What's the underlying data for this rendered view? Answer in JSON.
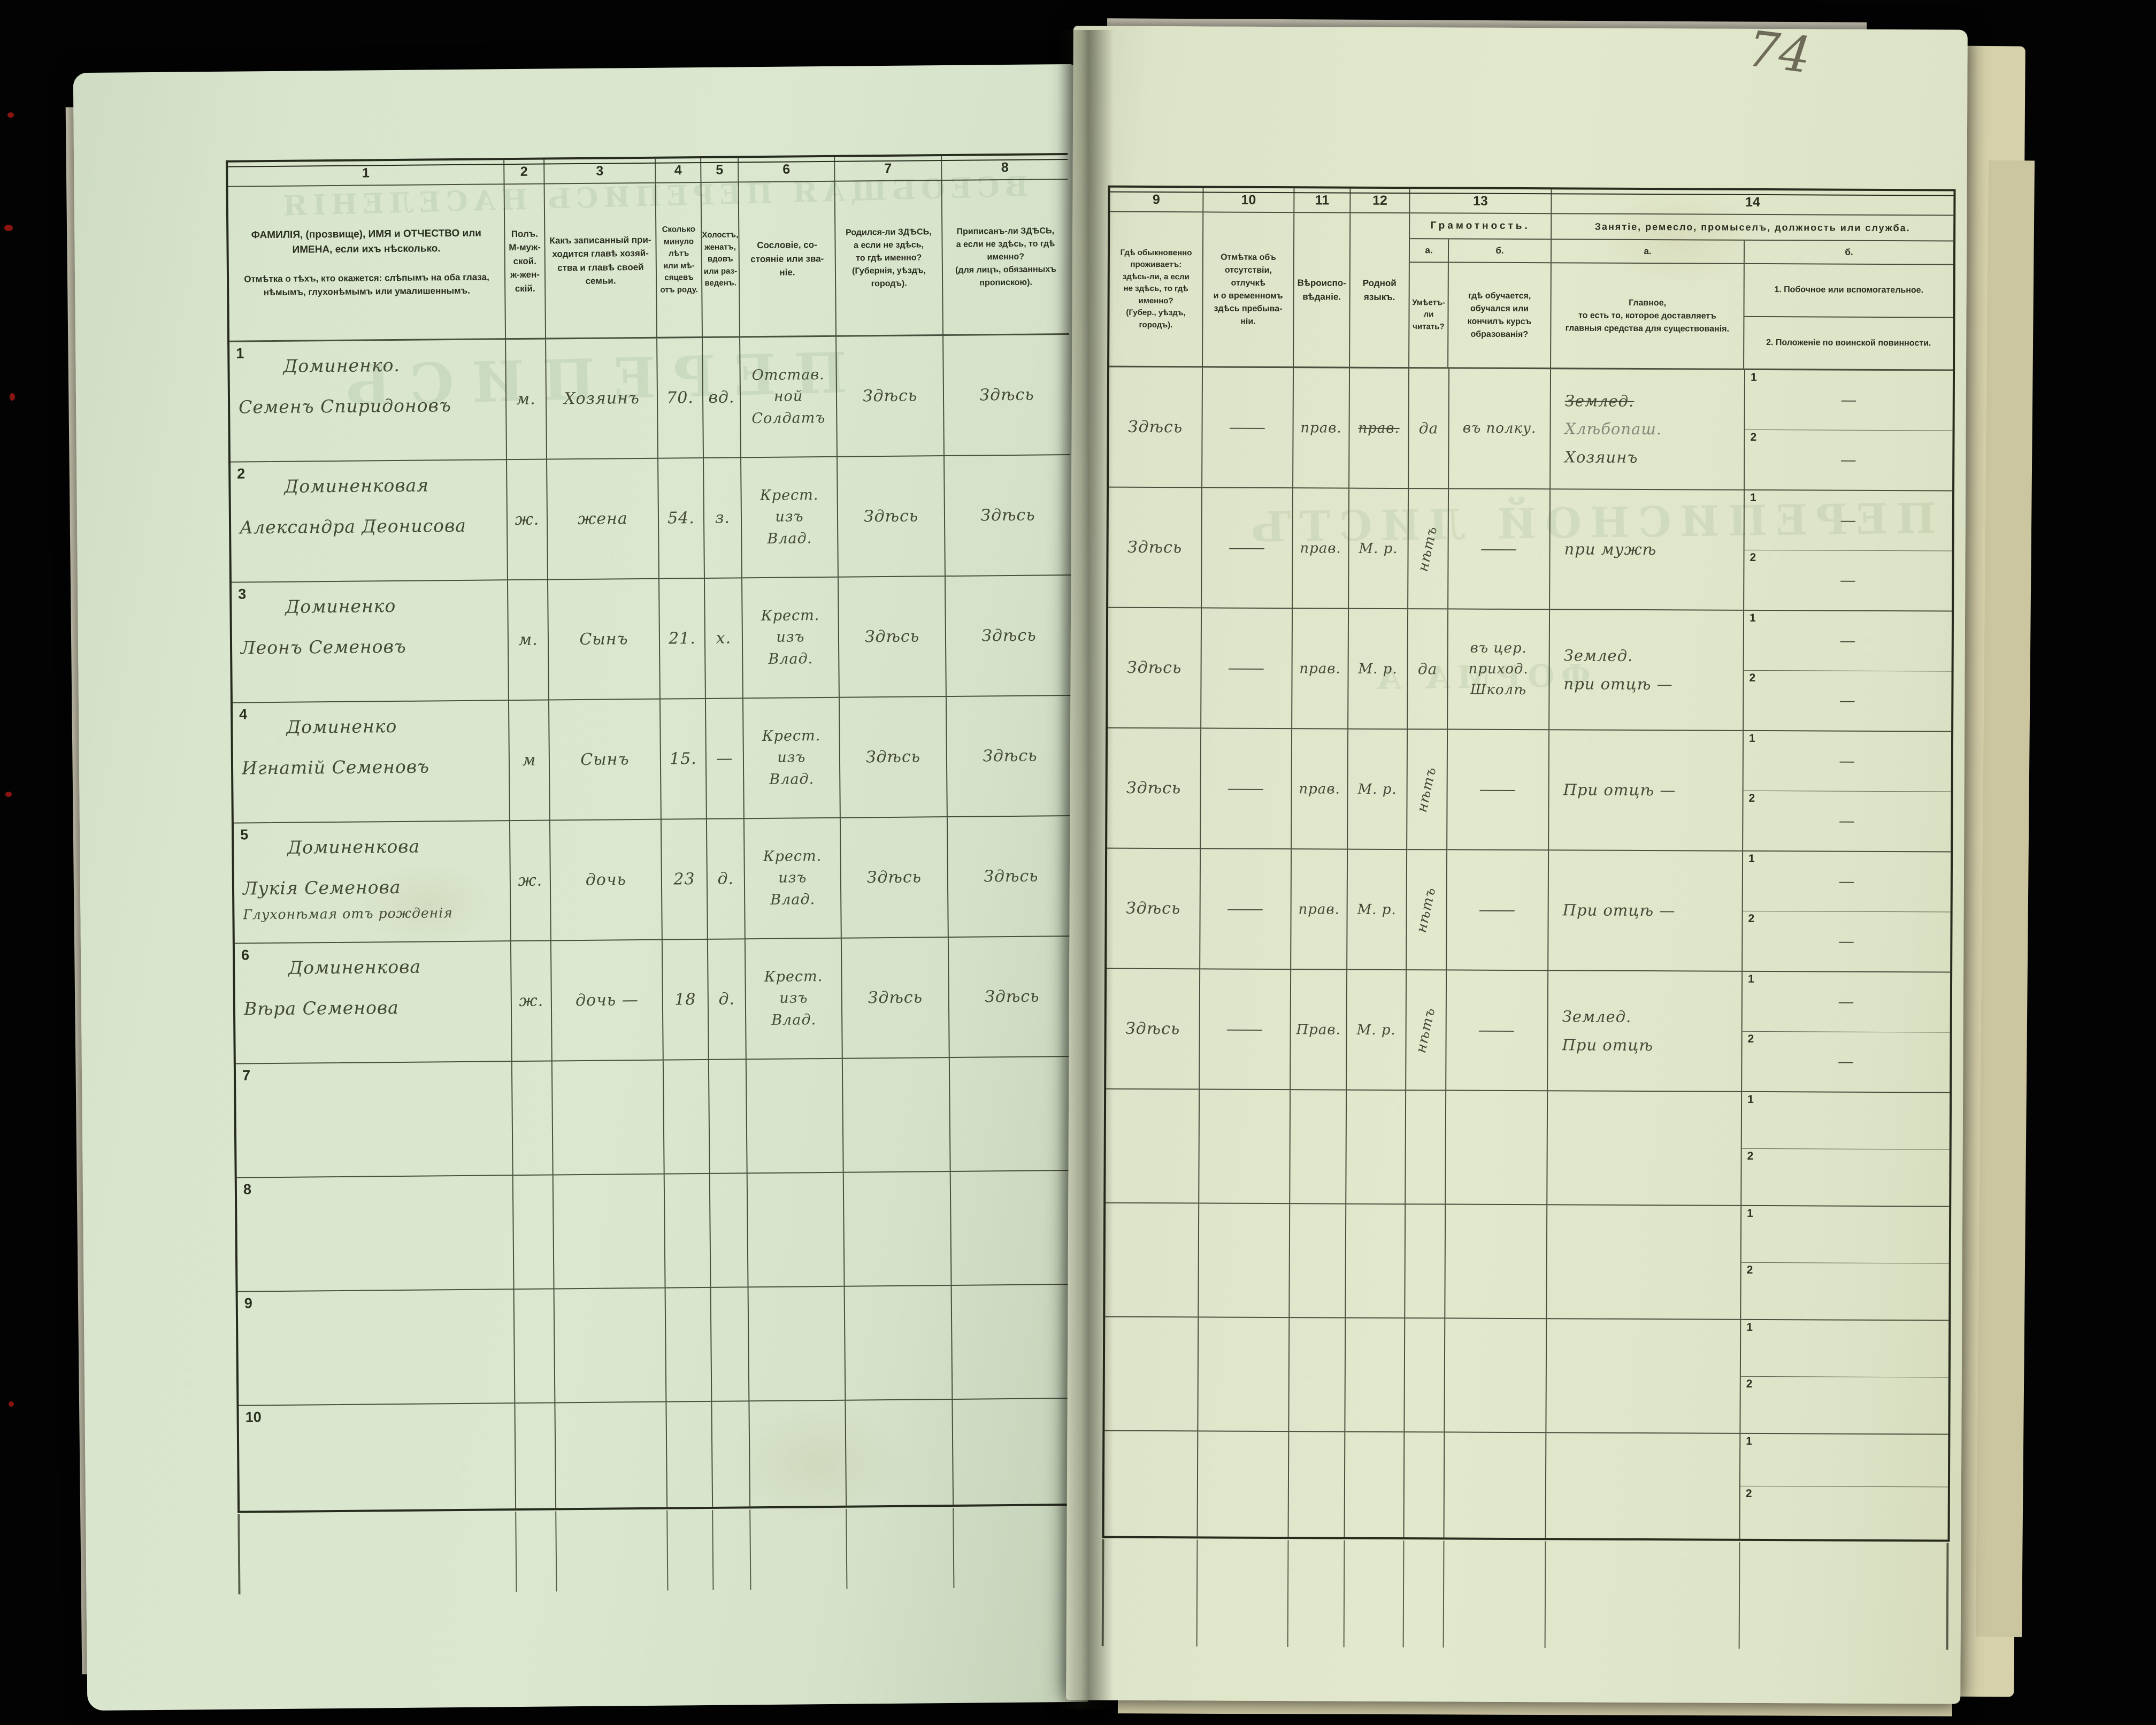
{
  "page_number": "74",
  "colors": {
    "background": "#030303",
    "paper_left": "#d9e5cd",
    "paper_right": "#e2e8cc",
    "print_ink": "#2a2e1f",
    "hand_ink": "#434936",
    "pencil": "#84887a",
    "table_line": "#2b2f21",
    "under_sheet": "#d8d2ac"
  },
  "header": {
    "nums": [
      "1",
      "2",
      "3",
      "4",
      "5",
      "6",
      "7",
      "8",
      "9",
      "10",
      "11",
      "12",
      "13",
      "14"
    ],
    "col1_top": "ФАМИЛІЯ, (прозвище), ИМЯ и ОТЧЕСТВО или ИМЕНА, если ихъ нѣсколько.",
    "col1_bottom": "Отмѣтка о тѣхъ, кто окажется: слѣпымъ на оба глаза, нѣмымъ, глухонѣмымъ или умалишеннымъ.",
    "col2": "Полъ.\nМ-муж-\nской.\nж-жен-\nскій.",
    "col3": "Какъ записанный при-\nходится главѣ хозяй-\nства и главѣ своей\nсемьи.",
    "col4": "Сколько\nминуло\nлѣтъ\nили мѣ-\nсяцевъ\nотъ роду.",
    "col5": "Холостъ,\nженатъ,\nвдовъ\nили раз-\nведенъ.",
    "col6": "Сословіе, со-\nстояніе или зва-\nніе.",
    "col7": "Родился-ли ЗДѢСЬ,\nа если не здѣсь,\nто гдѣ именно?\n(Губернія, уѣздъ, городъ).",
    "col8": "Приписанъ-ли ЗДѢСЬ,\nа если не здѣсь, то гдѣ\nименно?\n(для лицъ, обязанныхъ\nпропискою).",
    "col9": "Гдѣ обыкновенно\nпроживаетъ:\nздѣсь-ли, а если\nне здѣсь, то гдѣ\nименно?\n(Губер., уѣздъ, городъ).",
    "col10": "Отмѣтка объ\nотсутствіи, отлучкѣ\nи о временномъ\nздѣсь пребыва-\nніи.",
    "col11": "Вѣроиспо-\nвѣданіе.",
    "col12": "Родной\nязыкъ.",
    "col13_title": "Грамотность.",
    "col13a_label": "а.",
    "col13b_label": "б.",
    "col13a": "Умѣетъ-\nли\nчитать?",
    "col13b": "гдѣ обучается,\nобучался или\nкончилъ курсъ\nобразованія?",
    "col14_title": "Занятіе, ремесло, промыселъ, должность или служба.",
    "col14a_label": "а.",
    "col14b_label": "б.",
    "col14a": "Главное,\nто есть то, которое доставляетъ\nглавныя средства для существованія.",
    "col14b_1": "1. Побочное или вспомогательное.",
    "col14b_2": "2. Положеніе по воинской повинности."
  },
  "row_sub_labels": [
    "1",
    "2"
  ],
  "rows": [
    {
      "num": "1",
      "name": [
        "Доминенко.",
        "Семенъ Спиридоновъ"
      ],
      "sex": "м.",
      "relation": "Хозяинъ",
      "age": "70.",
      "marital": "вд.",
      "estate": "Отстав.\nной\nСолдатъ",
      "born": "Здѣсь",
      "registered": "Здѣсь",
      "resides": "Здѣсь",
      "absence": "—",
      "religion": "прав.",
      "language": "прав.",
      "language_struck": true,
      "reads": "да",
      "reads_vertical": false,
      "school": "въ полку.",
      "occupation": [
        {
          "t": "Землед.",
          "s": "struck"
        },
        {
          "t": "Хлѣбопаш.",
          "s": "pencil"
        },
        {
          "t": "Хозяинъ",
          "s": ""
        }
      ],
      "side1": "—",
      "side2": "—"
    },
    {
      "num": "2",
      "name": [
        "Доминенковая",
        "Александра Деонисова"
      ],
      "sex": "ж.",
      "relation": "жена",
      "age": "54.",
      "marital": "з.",
      "estate": "Крест.\nизъ\nВлад.",
      "born": "Здѣсь",
      "registered": "Здѣсь",
      "resides": "Здѣсь",
      "absence": "—",
      "religion": "прав.",
      "language": "М. р.",
      "language_struck": false,
      "reads": "нѣтъ",
      "reads_vertical": true,
      "school": "—",
      "occupation": [
        {
          "t": "при мужѣ",
          "s": ""
        }
      ],
      "side1": "—",
      "side2": "—"
    },
    {
      "num": "3",
      "name": [
        "Доминенко",
        "Леонъ Семеновъ"
      ],
      "sex": "м.",
      "relation": "Сынъ",
      "age": "21.",
      "marital": "х.",
      "estate": "Крест.\nизъ\nВлад.",
      "born": "Здѣсь",
      "registered": "Здѣсь",
      "resides": "Здѣсь",
      "absence": "—",
      "religion": "прав.",
      "language": "М. р.",
      "language_struck": false,
      "reads": "да",
      "reads_vertical": false,
      "school": "въ цер.\nприход.\nШколѣ",
      "occupation": [
        {
          "t": "Землед.",
          "s": ""
        },
        {
          "t": "при отцѣ —",
          "s": ""
        }
      ],
      "side1": "—",
      "side2": "—"
    },
    {
      "num": "4",
      "name": [
        "Доминенко",
        "Игнатій Семеновъ"
      ],
      "sex": "м",
      "relation": "Сынъ",
      "age": "15.",
      "marital": "—",
      "estate": "Крест.\nизъ\nВлад.",
      "born": "Здѣсь",
      "registered": "Здѣсь",
      "resides": "Здѣсь",
      "absence": "—",
      "religion": "прав.",
      "language": "М. р.",
      "language_struck": false,
      "reads": "нѣтъ",
      "reads_vertical": true,
      "school": "—",
      "occupation": [
        {
          "t": "При отцѣ —",
          "s": ""
        }
      ],
      "side1": "—",
      "side2": "—"
    },
    {
      "num": "5",
      "name": [
        "Доминенкова",
        "Лукія Семенова",
        "Глухонѣмая отъ рожденія"
      ],
      "sex": "ж.",
      "relation": "дочь",
      "age": "23",
      "marital": "д.",
      "estate": "Крест.\nизъ\nВлад.",
      "born": "Здѣсь",
      "registered": "Здѣсь",
      "resides": "Здѣсь",
      "absence": "—",
      "religion": "прав.",
      "language": "М. р.",
      "language_struck": false,
      "reads": "нѣтъ",
      "reads_vertical": true,
      "school": "—",
      "occupation": [
        {
          "t": "При отцѣ —",
          "s": ""
        }
      ],
      "side1": "—",
      "side2": "—"
    },
    {
      "num": "6",
      "name": [
        "Доминенкова",
        "Вѣра Семенова"
      ],
      "sex": "ж.",
      "relation": "дочь —",
      "age": "18",
      "marital": "д.",
      "estate": "Крест.\nизъ\nВлад.",
      "born": "Здѣсь",
      "registered": "Здѣсь",
      "resides": "Здѣсь",
      "absence": "—",
      "religion": "Прав.",
      "language": "М. р.",
      "language_struck": false,
      "reads": "нѣтъ",
      "reads_vertical": true,
      "school": "—",
      "occupation": [
        {
          "t": "Землед.",
          "s": ""
        },
        {
          "t": "При отцѣ",
          "s": ""
        }
      ],
      "side1": "—",
      "side2": "—"
    },
    {
      "num": "7",
      "name": [],
      "sex": "",
      "relation": "",
      "age": "",
      "marital": "",
      "estate": "",
      "born": "",
      "registered": "",
      "resides": "",
      "absence": "",
      "religion": "",
      "language": "",
      "language_struck": false,
      "reads": "",
      "reads_vertical": false,
      "school": "",
      "occupation": [],
      "side1": "",
      "side2": ""
    },
    {
      "num": "8",
      "name": [],
      "sex": "",
      "relation": "",
      "age": "",
      "marital": "",
      "estate": "",
      "born": "",
      "registered": "",
      "resides": "",
      "absence": "",
      "religion": "",
      "language": "",
      "language_struck": false,
      "reads": "",
      "reads_vertical": false,
      "school": "",
      "occupation": [],
      "side1": "",
      "side2": ""
    },
    {
      "num": "9",
      "name": [],
      "sex": "",
      "relation": "",
      "age": "",
      "marital": "",
      "estate": "",
      "born": "",
      "registered": "",
      "resides": "",
      "absence": "",
      "religion": "",
      "language": "",
      "language_struck": false,
      "reads": "",
      "reads_vertical": false,
      "school": "",
      "occupation": [],
      "side1": "",
      "side2": ""
    },
    {
      "num": "10",
      "name": [],
      "sex": "",
      "relation": "",
      "age": "",
      "marital": "",
      "estate": "",
      "born": "",
      "registered": "",
      "resides": "",
      "absence": "",
      "religion": "",
      "language": "",
      "language_struck": false,
      "reads": "",
      "reads_vertical": false,
      "school": "",
      "occupation": [],
      "side1": "",
      "side2": ""
    }
  ],
  "ghosts": [
    {
      "text": "ВСЕОБЩАЯ ПЕРЕПИСЬ НАСЕЛЕНІЯ"
    },
    {
      "text": "ПЕРЕПИСЬ"
    },
    {
      "text": "ПЕРЕПИСНОЙ ЛИСТЪ"
    },
    {
      "text": "ФОРМА А"
    }
  ]
}
